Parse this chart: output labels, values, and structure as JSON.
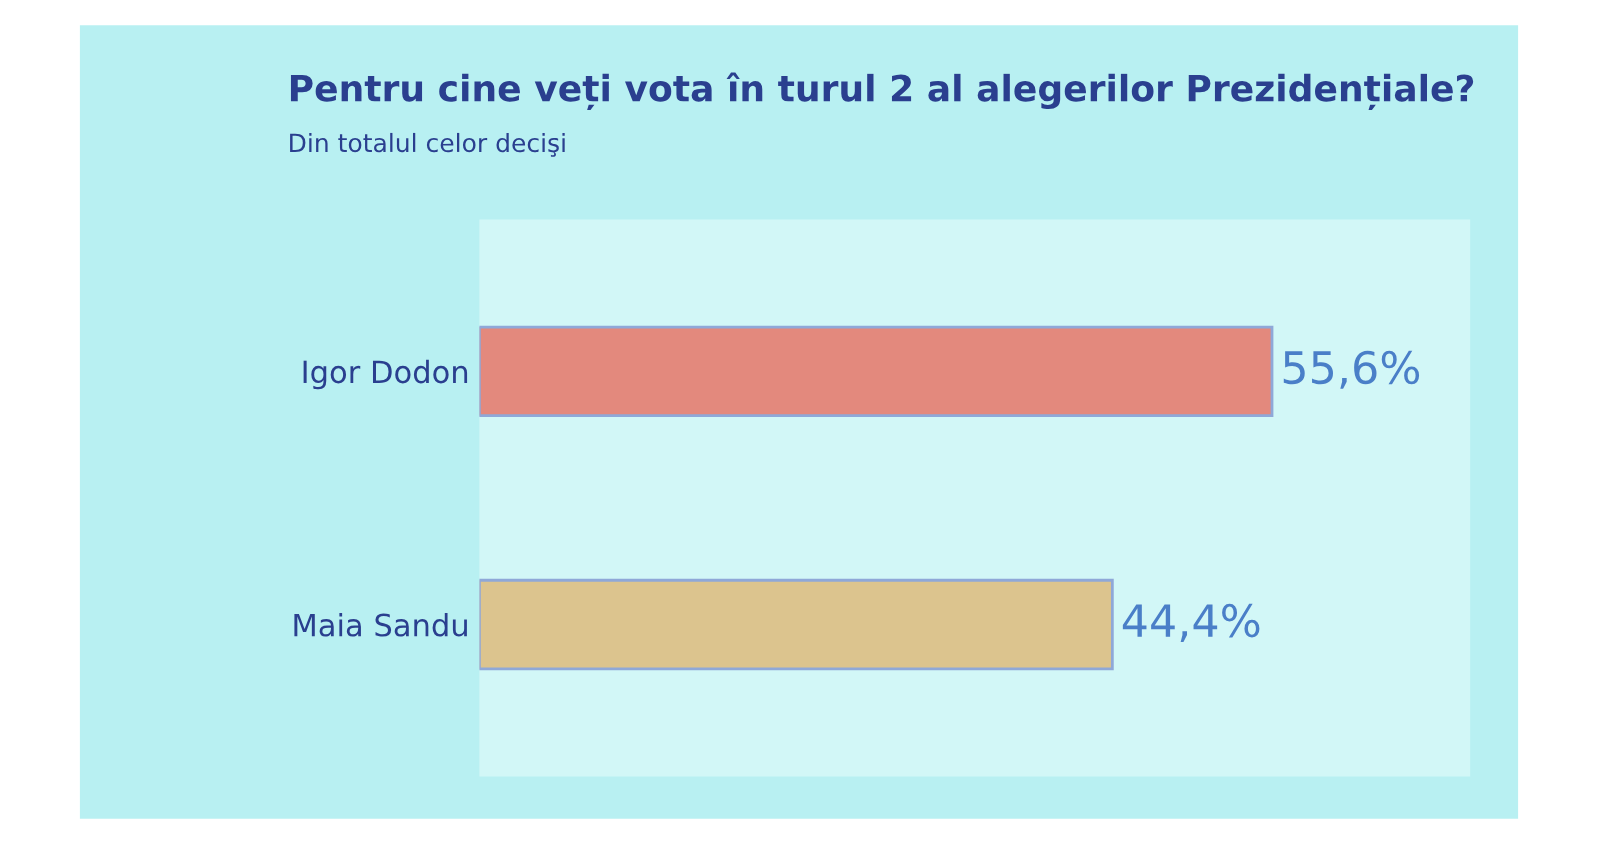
{
  "chart_data": {
    "type": "bar",
    "orientation": "horizontal",
    "title": "Pentru cine veți vota în turul 2 al alegerilor Prezidențiale?",
    "subtitle": "Din totalul celor decişi",
    "categories": [
      "Igor Dodon",
      "Maia Sandu"
    ],
    "values": [
      55.6,
      44.4
    ],
    "colors": [
      "#e3897d",
      "#dcc48e"
    ],
    "value_labels": [
      "55,6%",
      "44,4%"
    ],
    "grid": false,
    "legend": false
  }
}
